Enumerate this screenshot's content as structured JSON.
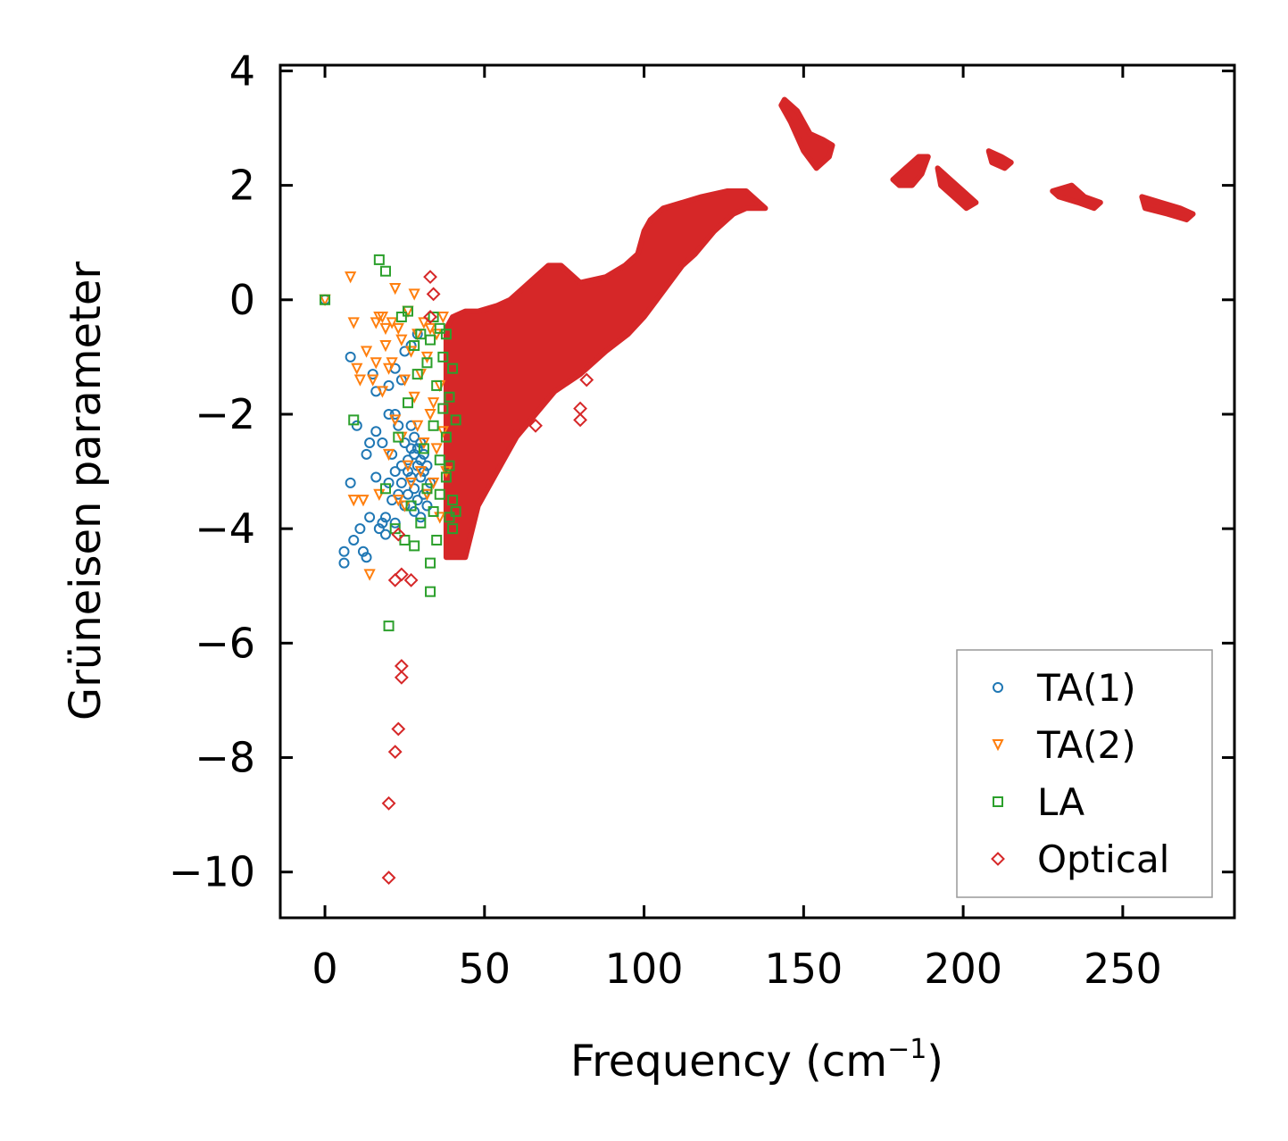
{
  "chart_data": {
    "type": "scatter",
    "xlabel": "Frequency (cm",
    "xlabel_superscript": "−1",
    "xlabel_suffix": ")",
    "ylabel": "Grüneisen parameter",
    "xlim": [
      -14,
      285
    ],
    "ylim": [
      -10.8,
      4.1
    ],
    "xticks": [
      0,
      50,
      100,
      150,
      200,
      250
    ],
    "xtick_labels": [
      "0",
      "50",
      "100",
      "150",
      "200",
      "250"
    ],
    "yticks": [
      4,
      2,
      0,
      -2,
      -4,
      -6,
      -8,
      -10
    ],
    "ytick_labels": [
      "4",
      "2",
      "0",
      "−2",
      "−4",
      "−6",
      "−8",
      "−10"
    ],
    "grid": false,
    "legend_position": "bottom-right",
    "series": [
      {
        "name": "TA(1)",
        "marker": "circle",
        "color": "#1f77b4",
        "points": [
          [
            0,
            0
          ],
          [
            6,
            -4.4
          ],
          [
            6,
            -4.6
          ],
          [
            8,
            -1.0
          ],
          [
            8,
            -3.2
          ],
          [
            9,
            -4.2
          ],
          [
            10,
            -2.2
          ],
          [
            11,
            -4.0
          ],
          [
            12,
            -4.4
          ],
          [
            13,
            -4.5
          ],
          [
            13,
            -2.7
          ],
          [
            14,
            -3.8
          ],
          [
            14,
            -2.5
          ],
          [
            15,
            -1.3
          ],
          [
            16,
            -3.1
          ],
          [
            16,
            -2.3
          ],
          [
            16,
            -1.6
          ],
          [
            17,
            -4.0
          ],
          [
            18,
            -2.5
          ],
          [
            18,
            -3.9
          ],
          [
            19,
            -3.8
          ],
          [
            19,
            -4.1
          ],
          [
            20,
            -1.5
          ],
          [
            20,
            -2.0
          ],
          [
            20,
            -3.2
          ],
          [
            21,
            -2.7
          ],
          [
            21,
            -3.5
          ],
          [
            22,
            -3.0
          ],
          [
            22,
            -2.0
          ],
          [
            22,
            -1.2
          ],
          [
            22,
            -3.9
          ],
          [
            23,
            -2.2
          ],
          [
            23,
            -3.4
          ],
          [
            24,
            -2.9
          ],
          [
            24,
            -3.2
          ],
          [
            24,
            -1.4
          ],
          [
            25,
            -2.5
          ],
          [
            25,
            -3.6
          ],
          [
            25,
            -0.9
          ],
          [
            26,
            -3.0
          ],
          [
            26,
            -2.8
          ],
          [
            26,
            -3.4
          ],
          [
            27,
            -2.6
          ],
          [
            27,
            -3.1
          ],
          [
            27,
            -2.2
          ],
          [
            27,
            -0.8
          ],
          [
            28,
            -2.7
          ],
          [
            28,
            -3.3
          ],
          [
            28,
            -3.7
          ],
          [
            28,
            -2.4
          ],
          [
            29,
            -2.9
          ],
          [
            29,
            -3.5
          ],
          [
            29,
            -2.6
          ],
          [
            29,
            -0.6
          ],
          [
            30,
            -2.8
          ],
          [
            30,
            -3.1
          ],
          [
            30,
            -2.5
          ],
          [
            30,
            -3.8
          ],
          [
            31,
            -3.0
          ],
          [
            31,
            -2.7
          ],
          [
            31,
            -3.4
          ],
          [
            32,
            -3.6
          ],
          [
            32,
            -2.9
          ],
          [
            33,
            -3.2
          ]
        ]
      },
      {
        "name": "TA(2)",
        "marker": "triangle-down",
        "color": "#ff7f0e",
        "points": [
          [
            0,
            0
          ],
          [
            8,
            0.4
          ],
          [
            9,
            -0.4
          ],
          [
            9,
            -3.5
          ],
          [
            10,
            -1.2
          ],
          [
            11,
            -1.4
          ],
          [
            12,
            -3.5
          ],
          [
            13,
            -0.9
          ],
          [
            14,
            -4.8
          ],
          [
            15,
            -1.4
          ],
          [
            16,
            -0.4
          ],
          [
            16,
            -1.1
          ],
          [
            17,
            -0.3
          ],
          [
            17,
            -3.4
          ],
          [
            18,
            -0.3
          ],
          [
            18,
            -1.6
          ],
          [
            19,
            -0.5
          ],
          [
            19,
            -0.8
          ],
          [
            20,
            -1.2
          ],
          [
            20,
            -2.7
          ],
          [
            21,
            -1.1
          ],
          [
            21,
            -0.4
          ],
          [
            22,
            0.2
          ],
          [
            22,
            -2.1
          ],
          [
            23,
            -0.5
          ],
          [
            23,
            -3.5
          ],
          [
            24,
            -0.7
          ],
          [
            24,
            -2.4
          ],
          [
            25,
            -3.6
          ],
          [
            25,
            -1.4
          ],
          [
            26,
            -0.2
          ],
          [
            26,
            -2.9
          ],
          [
            27,
            -0.9
          ],
          [
            27,
            -3.2
          ],
          [
            28,
            0.1
          ],
          [
            28,
            -1.7
          ],
          [
            29,
            -2.2
          ],
          [
            29,
            -0.6
          ],
          [
            30,
            -3.0
          ],
          [
            30,
            -1.3
          ],
          [
            31,
            -0.4
          ],
          [
            31,
            -2.5
          ],
          [
            32,
            -3.4
          ],
          [
            32,
            -1.0
          ],
          [
            33,
            -0.5
          ],
          [
            33,
            -2.0
          ],
          [
            34,
            -1.8
          ],
          [
            34,
            -3.2
          ],
          [
            35,
            -0.6
          ],
          [
            35,
            -2.6
          ],
          [
            36,
            -1.5
          ],
          [
            36,
            -3.8
          ],
          [
            37,
            -0.3
          ],
          [
            37,
            -2.3
          ],
          [
            38,
            -3.0
          ]
        ]
      },
      {
        "name": "LA",
        "marker": "square",
        "color": "#2ca02c",
        "points": [
          [
            0,
            0
          ],
          [
            9,
            -2.1
          ],
          [
            17,
            0.7
          ],
          [
            19,
            -3.3
          ],
          [
            19,
            0.5
          ],
          [
            20,
            -5.7
          ],
          [
            22,
            -4.0
          ],
          [
            23,
            -2.4
          ],
          [
            24,
            -0.3
          ],
          [
            25,
            -4.2
          ],
          [
            26,
            -0.2
          ],
          [
            26,
            -1.8
          ],
          [
            27,
            -3.6
          ],
          [
            28,
            -0.8
          ],
          [
            28,
            -4.3
          ],
          [
            29,
            -1.3
          ],
          [
            30,
            -3.9
          ],
          [
            30,
            -0.6
          ],
          [
            31,
            -2.6
          ],
          [
            32,
            -1.1
          ],
          [
            32,
            -3.3
          ],
          [
            33,
            -0.7
          ],
          [
            33,
            -4.6
          ],
          [
            33,
            -5.1
          ],
          [
            34,
            -0.3
          ],
          [
            34,
            -2.2
          ],
          [
            34,
            -3.7
          ],
          [
            35,
            -1.5
          ],
          [
            35,
            -4.2
          ],
          [
            36,
            -0.5
          ],
          [
            36,
            -2.8
          ],
          [
            36,
            -3.4
          ],
          [
            37,
            -1.9
          ],
          [
            37,
            -1.0
          ],
          [
            38,
            -3.1
          ],
          [
            38,
            -2.4
          ],
          [
            38,
            -0.6
          ],
          [
            39,
            -3.8
          ],
          [
            39,
            -1.7
          ],
          [
            39,
            -2.9
          ],
          [
            40,
            -3.5
          ],
          [
            40,
            -1.2
          ],
          [
            40,
            -4.0
          ],
          [
            41,
            -2.1
          ],
          [
            41,
            -3.7
          ]
        ]
      },
      {
        "name": "Optical",
        "marker": "diamond",
        "color": "#d62728",
        "points": [
          [
            20,
            -10.1
          ],
          [
            20,
            -8.8
          ],
          [
            22,
            -7.9
          ],
          [
            23,
            -7.5
          ],
          [
            24,
            -6.6
          ],
          [
            24,
            -6.4
          ],
          [
            22,
            -4.9
          ],
          [
            24,
            -4.8
          ],
          [
            27,
            -4.9
          ],
          [
            23,
            -4.1
          ],
          [
            33,
            0.4
          ],
          [
            34,
            0.1
          ],
          [
            33,
            -0.3
          ],
          [
            80,
            -1.9
          ],
          [
            80,
            -2.1
          ],
          [
            82,
            -1.4
          ],
          [
            60,
            -2.2
          ],
          [
            66,
            -2.2
          ]
        ],
        "bands": [
          [
            [
              38,
              -0.5
            ],
            [
              38,
              -4.5
            ],
            [
              44,
              -4.5
            ],
            [
              48,
              -3.6
            ],
            [
              54,
              -3.0
            ],
            [
              60,
              -2.4
            ],
            [
              66,
              -2.0
            ],
            [
              72,
              -1.6
            ],
            [
              80,
              -1.3
            ],
            [
              88,
              -0.9
            ],
            [
              95,
              -0.6
            ],
            [
              100,
              -0.3
            ],
            [
              104,
              0.0
            ],
            [
              108,
              0.3
            ],
            [
              112,
              0.6
            ],
            [
              116,
              0.8
            ],
            [
              122,
              1.2
            ],
            [
              128,
              1.5
            ],
            [
              132,
              1.6
            ],
            [
              138,
              1.6
            ],
            [
              132,
              1.9
            ],
            [
              126,
              1.9
            ],
            [
              118,
              1.8
            ],
            [
              112,
              1.7
            ],
            [
              106,
              1.6
            ],
            [
              102,
              1.4
            ],
            [
              100,
              1.2
            ],
            [
              98,
              0.8
            ],
            [
              94,
              0.6
            ],
            [
              88,
              0.4
            ],
            [
              80,
              0.3
            ],
            [
              74,
              0.6
            ],
            [
              70,
              0.6
            ],
            [
              66,
              0.4
            ],
            [
              62,
              0.2
            ],
            [
              58,
              0.0
            ],
            [
              54,
              -0.1
            ],
            [
              48,
              -0.2
            ],
            [
              44,
              -0.2
            ],
            [
              40,
              -0.3
            ]
          ],
          [
            [
              144,
              3.5
            ],
            [
              148,
              3.3
            ],
            [
              152,
              2.9
            ],
            [
              156,
              2.8
            ],
            [
              159,
              2.7
            ],
            [
              158,
              2.5
            ],
            [
              154,
              2.3
            ],
            [
              150,
              2.6
            ],
            [
              146,
              3.1
            ],
            [
              143,
              3.4
            ]
          ],
          [
            [
              178,
              2.1
            ],
            [
              182,
              2.3
            ],
            [
              186,
              2.5
            ],
            [
              189,
              2.5
            ],
            [
              187,
              2.2
            ],
            [
              184,
              2.0
            ],
            [
              180,
              2.0
            ]
          ],
          [
            [
              192,
              2.3
            ],
            [
              196,
              2.1
            ],
            [
              200,
              1.9
            ],
            [
              204,
              1.7
            ],
            [
              201,
              1.6
            ],
            [
              197,
              1.8
            ],
            [
              193,
              2.0
            ]
          ],
          [
            [
              208,
              2.6
            ],
            [
              212,
              2.5
            ],
            [
              215,
              2.4
            ],
            [
              213,
              2.3
            ],
            [
              209,
              2.4
            ]
          ],
          [
            [
              228,
              1.9
            ],
            [
              234,
              2.0
            ],
            [
              238,
              1.8
            ],
            [
              243,
              1.7
            ],
            [
              241,
              1.6
            ],
            [
              236,
              1.7
            ],
            [
              230,
              1.8
            ]
          ],
          [
            [
              256,
              1.8
            ],
            [
              262,
              1.7
            ],
            [
              268,
              1.6
            ],
            [
              272,
              1.5
            ],
            [
              270,
              1.4
            ],
            [
              264,
              1.5
            ],
            [
              257,
              1.6
            ]
          ]
        ]
      }
    ]
  }
}
